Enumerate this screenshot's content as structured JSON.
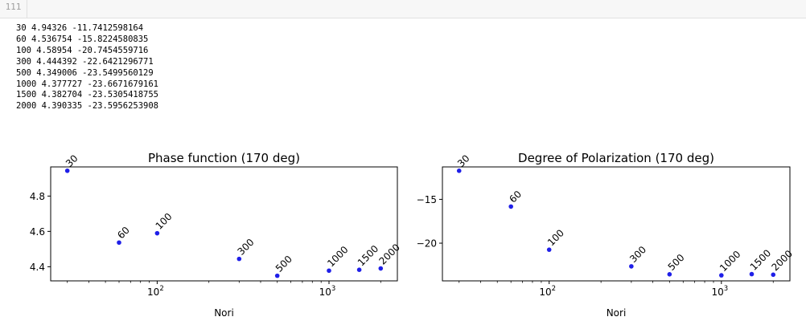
{
  "cell": {
    "prompt": "111"
  },
  "output_lines": [
    "30 4.94326 -11.7412598164",
    "60 4.536754 -15.8224580835",
    "100 4.58954 -20.7454559716",
    "300 4.444392 -22.6421296771",
    "500 4.349006 -23.5499560129",
    "1000 4.377727 -23.6671679161",
    "1500 4.382704 -23.5305418755",
    "2000 4.390335 -23.5956253908"
  ],
  "colors": {
    "marker": "#1f1fe8",
    "axis": "#000000"
  },
  "chart_data": [
    {
      "type": "scatter",
      "title": "Phase function (170 deg)",
      "xlabel": "Nori",
      "ylabel": "",
      "xscale": "log",
      "xlim": [
        24,
        2500
      ],
      "ylim": [
        4.32,
        4.965
      ],
      "yticks": [
        4.4,
        4.6,
        4.8
      ],
      "ytick_labels": [
        "4.4",
        "4.6",
        "4.8"
      ],
      "xticks": [
        100,
        1000
      ],
      "xtick_labels": [
        [
          "10",
          "2"
        ],
        [
          "10",
          "3"
        ]
      ],
      "x": [
        30,
        60,
        100,
        300,
        500,
        1000,
        1500,
        2000
      ],
      "y": [
        4.94326,
        4.536754,
        4.58954,
        4.444392,
        4.349006,
        4.377727,
        4.382704,
        4.390335
      ],
      "point_labels": [
        "30",
        "60",
        "100",
        "300",
        "500",
        "1000",
        "1500",
        "2000"
      ]
    },
    {
      "type": "scatter",
      "title": "Degree of Polarization (170 deg)",
      "xlabel": "Nori",
      "ylabel": "",
      "xscale": "log",
      "xlim": [
        24,
        2500
      ],
      "ylim": [
        -24.3,
        -11.3
      ],
      "yticks": [
        -20,
        -15
      ],
      "ytick_labels": [
        "−20",
        "−15"
      ],
      "xticks": [
        100,
        1000
      ],
      "xtick_labels": [
        [
          "10",
          "2"
        ],
        [
          "10",
          "3"
        ]
      ],
      "x": [
        30,
        60,
        100,
        300,
        500,
        1000,
        1500,
        2000
      ],
      "y": [
        -11.7412598164,
        -15.8224580835,
        -20.7454559716,
        -22.6421296771,
        -23.5499560129,
        -23.6671679161,
        -23.5305418755,
        -23.5956253908
      ],
      "point_labels": [
        "30",
        "60",
        "100",
        "300",
        "500",
        "1000",
        "1500",
        "2000"
      ]
    }
  ]
}
